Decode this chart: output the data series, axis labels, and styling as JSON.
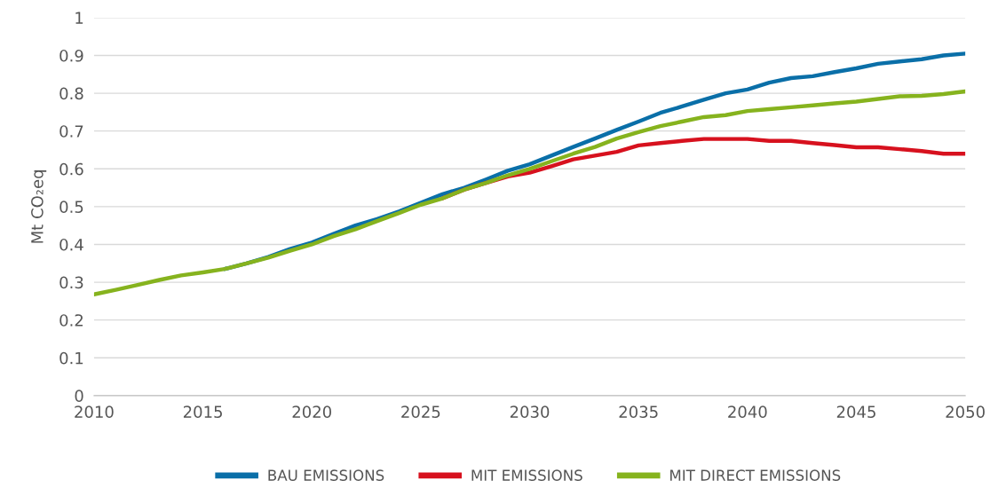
{
  "chart_data": {
    "type": "line",
    "ylabel": "Mt CO₂eq",
    "x": [
      2010,
      2011,
      2012,
      2013,
      2014,
      2015,
      2016,
      2017,
      2018,
      2019,
      2020,
      2021,
      2022,
      2023,
      2024,
      2025,
      2026,
      2027,
      2028,
      2029,
      2030,
      2031,
      2032,
      2033,
      2034,
      2035,
      2036,
      2037,
      2038,
      2039,
      2040,
      2041,
      2042,
      2043,
      2044,
      2045,
      2046,
      2047,
      2048,
      2049,
      2050
    ],
    "series": [
      {
        "name": "BAU EMISSIONS",
        "color": "#0a6fa8",
        "values": [
          null,
          null,
          null,
          null,
          null,
          null,
          0.335,
          0.35,
          0.367,
          0.388,
          0.405,
          0.428,
          0.45,
          0.467,
          0.487,
          0.51,
          0.533,
          0.55,
          0.572,
          0.595,
          0.612,
          0.635,
          0.658,
          0.68,
          0.703,
          0.725,
          0.748,
          0.765,
          0.783,
          0.8,
          0.81,
          0.828,
          0.84,
          0.845,
          0.856,
          0.866,
          0.878,
          0.884,
          0.89,
          0.9,
          0.905
        ]
      },
      {
        "name": "MIT EMISSIONS",
        "color": "#d7111e",
        "values": [
          null,
          null,
          null,
          null,
          null,
          null,
          null,
          null,
          null,
          null,
          null,
          null,
          null,
          null,
          null,
          null,
          0.522,
          0.545,
          0.563,
          0.58,
          0.59,
          0.607,
          0.625,
          0.635,
          0.645,
          0.662,
          0.668,
          0.674,
          0.679,
          0.679,
          0.679,
          0.674,
          0.674,
          0.668,
          0.663,
          0.657,
          0.657,
          0.652,
          0.647,
          0.64,
          0.64
        ]
      },
      {
        "name": "MIT DIRECT EMISSIONS",
        "color": "#86b31e",
        "values": [
          0.268,
          0.28,
          0.293,
          0.306,
          0.318,
          0.326,
          0.335,
          0.35,
          0.365,
          0.383,
          0.4,
          0.422,
          0.44,
          0.462,
          0.483,
          0.505,
          0.522,
          0.545,
          0.563,
          0.583,
          0.6,
          0.62,
          0.64,
          0.658,
          0.68,
          0.697,
          0.713,
          0.725,
          0.737,
          0.742,
          0.753,
          0.758,
          0.763,
          0.768,
          0.773,
          0.778,
          0.785,
          0.792,
          0.793,
          0.798,
          0.805
        ]
      }
    ],
    "xlim": [
      2010,
      2050
    ],
    "xticks": [
      2010,
      2015,
      2020,
      2025,
      2030,
      2035,
      2040,
      2045,
      2050
    ],
    "ylim": [
      0,
      1
    ],
    "yticks": [
      0,
      0.1,
      0.2,
      0.3,
      0.4,
      0.5,
      0.6,
      0.7,
      0.8,
      0.9,
      1
    ],
    "grid": "y",
    "legend": "bottom",
    "marker": "none",
    "line_style": "solid"
  }
}
